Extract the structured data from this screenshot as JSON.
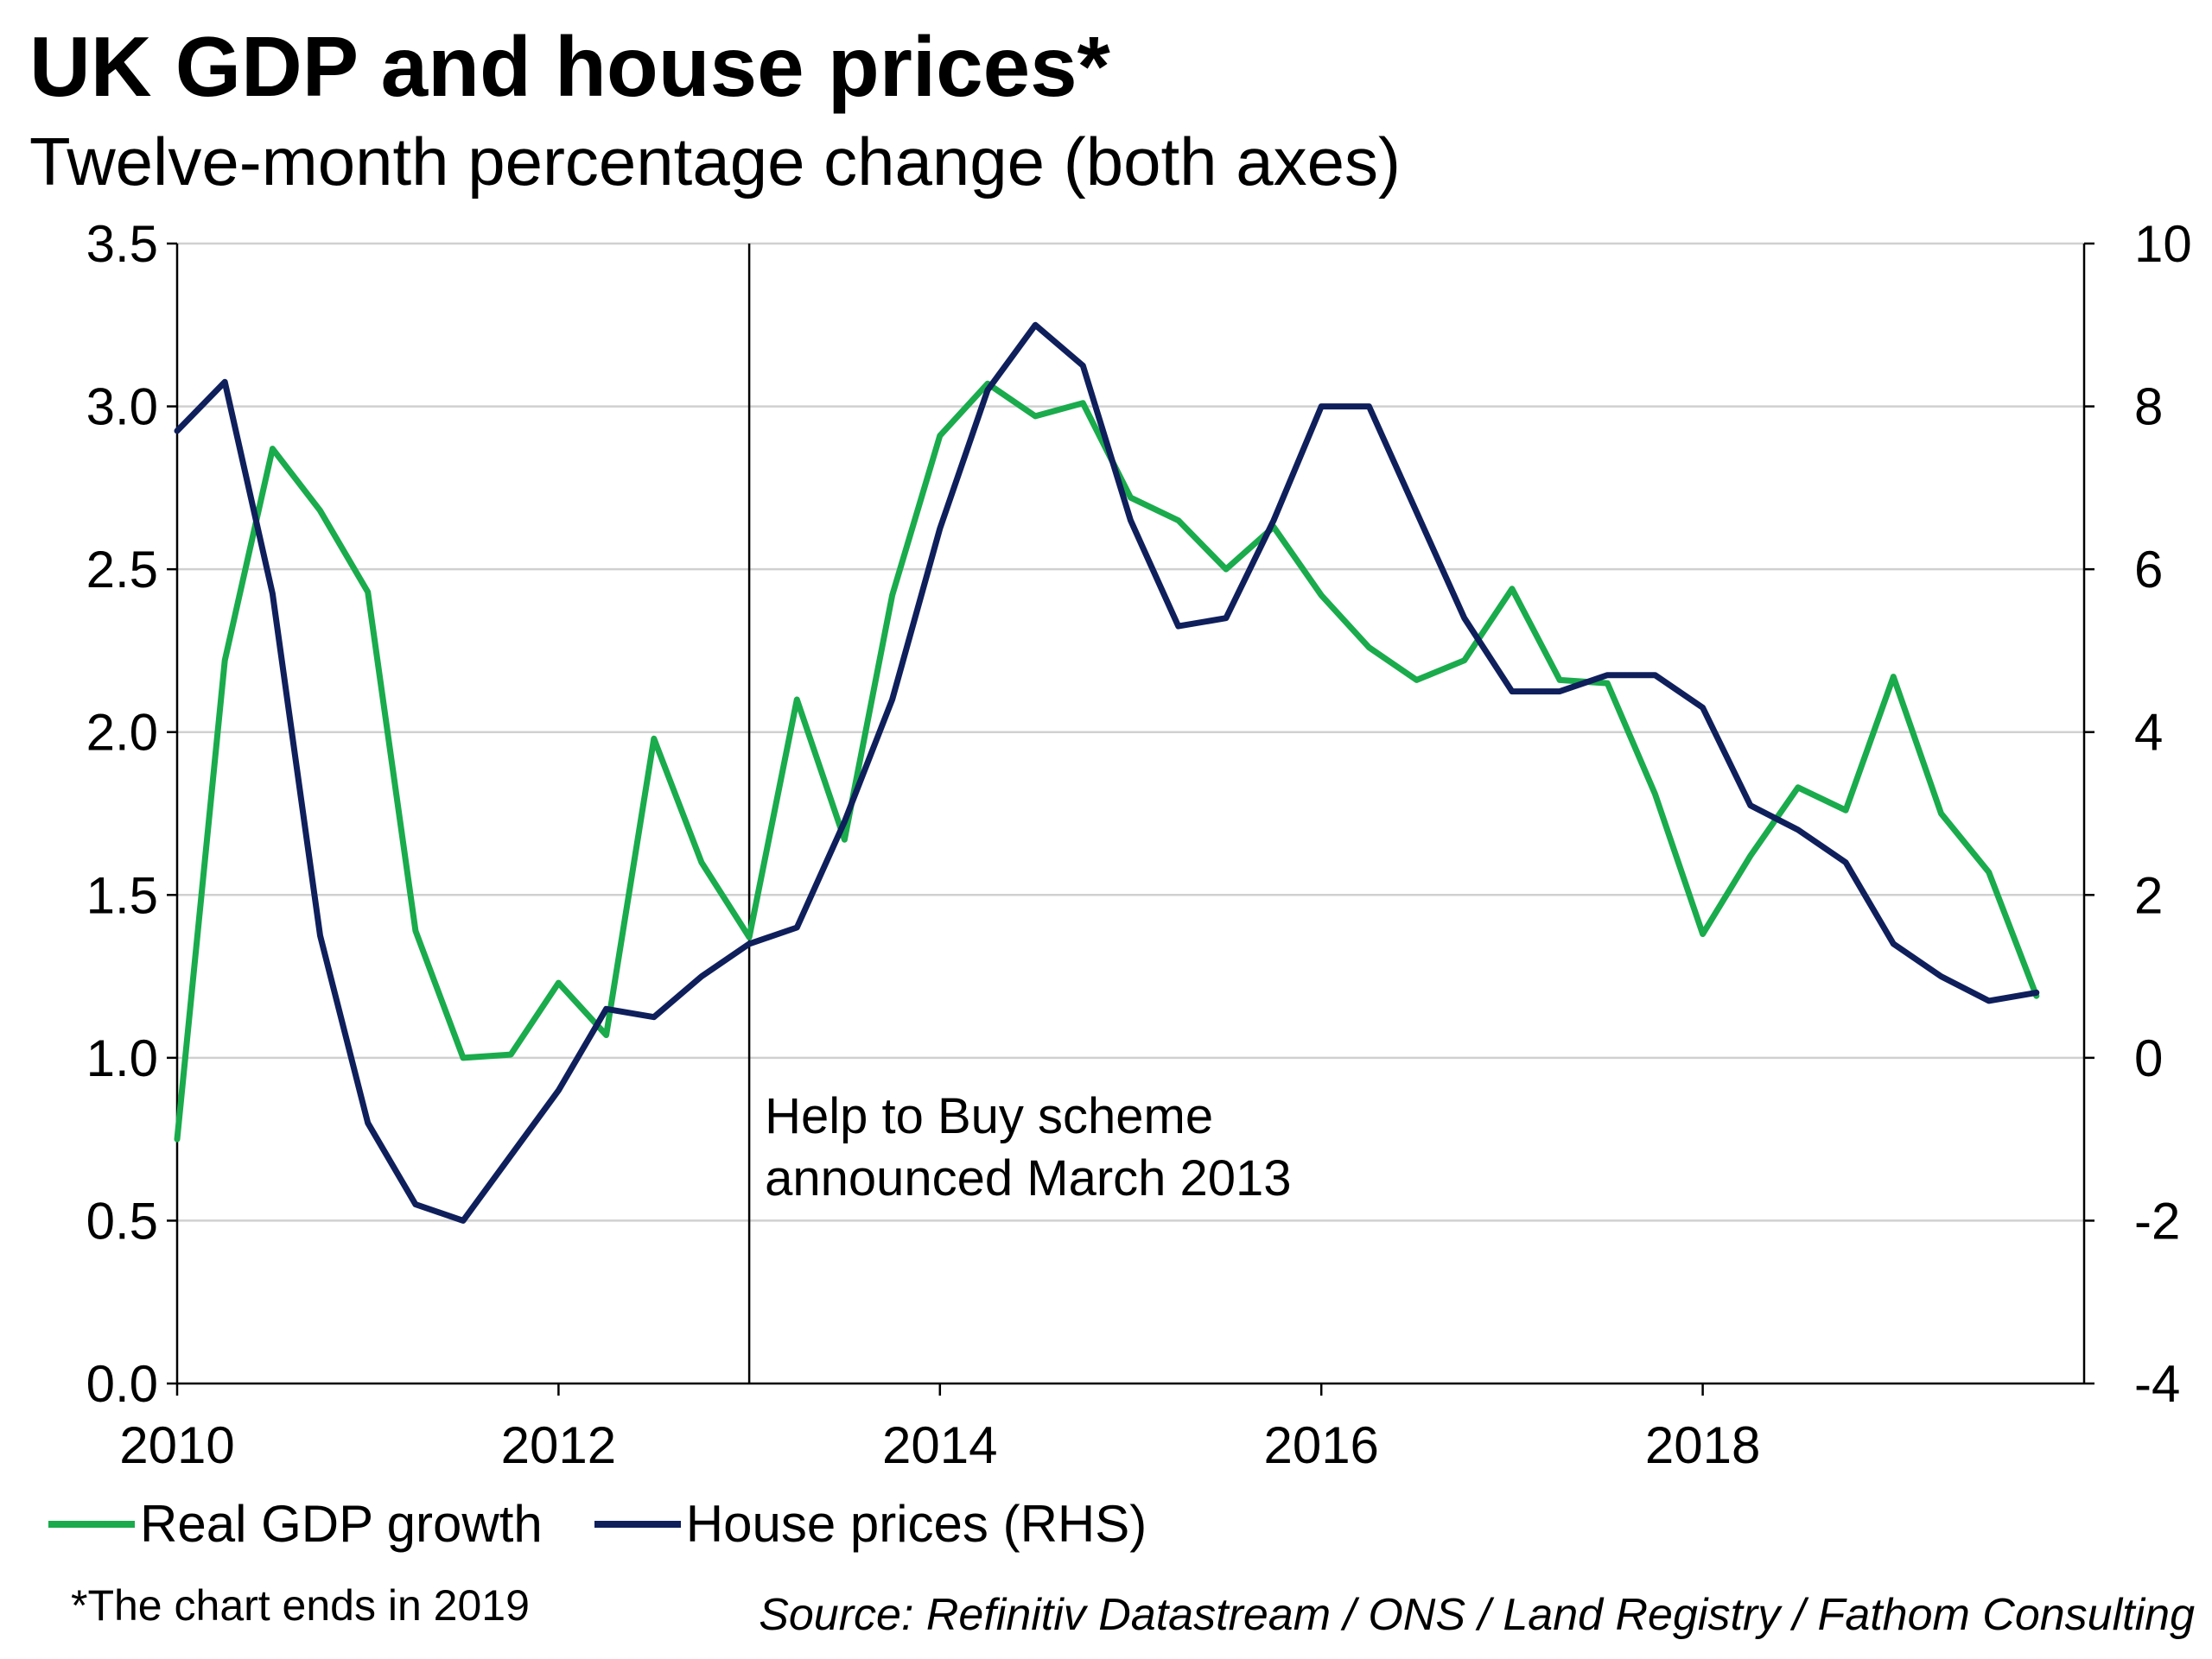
{
  "title": "UK GDP and house prices*",
  "subtitle": "Twelve-month percentage change (both axes)",
  "footnote": "*The chart ends in 2019",
  "source": "Source: Refinitiv Datastream / ONS / Land Registry /  Fathom Consulting",
  "colors": {
    "gdp": "#1aab4c",
    "house": "#0f1f5c",
    "grid": "#d0d0d0",
    "axis": "#000000"
  },
  "chart_data": {
    "type": "line",
    "x_axis": {
      "range": [
        2010,
        2020
      ],
      "ticks": [
        2010,
        2012,
        2014,
        2016,
        2018
      ],
      "tick_labels": [
        "2010",
        "2012",
        "2014",
        "2016",
        "2018"
      ]
    },
    "y_left": {
      "range": [
        0,
        3.5
      ],
      "ticks": [
        0,
        0.5,
        1,
        1.5,
        2,
        2.5,
        3,
        3.5
      ],
      "tick_labels": [
        "0.0",
        "0.5",
        "1.0",
        "1.5",
        "2.0",
        "2.5",
        "3.0",
        "3.5"
      ]
    },
    "y_right": {
      "range": [
        -4,
        10
      ],
      "ticks": [
        -4,
        -2,
        0,
        2,
        4,
        6,
        8,
        10
      ],
      "tick_labels": [
        "-4",
        "-2",
        "0",
        "2",
        "4",
        "6",
        "8",
        "10"
      ]
    },
    "grid": true,
    "legend_position": "bottom-left",
    "annotation": {
      "x": 2013.0,
      "lines": [
        "Help to Buy scheme",
        "announced March 2013"
      ]
    },
    "series": [
      {
        "name": "Real GDP growth",
        "axis": "left",
        "x": [
          2010.0,
          2010.25,
          2010.5,
          2010.75,
          2011.0,
          2011.25,
          2011.5,
          2011.75,
          2012.0,
          2012.25,
          2012.5,
          2012.75,
          2013.0,
          2013.25,
          2013.5,
          2013.75,
          2014.0,
          2014.25,
          2014.5,
          2014.75,
          2015.0,
          2015.25,
          2015.5,
          2015.75,
          2016.0,
          2016.25,
          2016.5,
          2016.75,
          2017.0,
          2017.25,
          2017.5,
          2017.75,
          2018.0,
          2018.25,
          2018.5,
          2018.75,
          2019.0,
          2019.25,
          2019.5,
          2019.75
        ],
        "y": [
          0.75,
          2.22,
          2.87,
          2.68,
          2.43,
          1.39,
          1.0,
          1.01,
          1.23,
          1.07,
          1.98,
          1.6,
          1.37,
          2.1,
          1.67,
          2.42,
          2.91,
          3.07,
          2.97,
          3.01,
          2.72,
          2.65,
          2.5,
          2.63,
          2.42,
          2.26,
          2.16,
          2.22,
          2.44,
          2.16,
          2.15,
          1.81,
          1.38,
          1.62,
          1.83,
          1.76,
          2.17,
          1.75,
          1.57,
          1.19
        ]
      },
      {
        "name": "House prices (RHS)",
        "axis": "right",
        "x": [
          2010.0,
          2010.25,
          2010.5,
          2010.75,
          2011.0,
          2011.25,
          2011.5,
          2011.75,
          2012.0,
          2012.25,
          2012.5,
          2012.75,
          2013.0,
          2013.25,
          2013.5,
          2013.75,
          2014.0,
          2014.25,
          2014.5,
          2014.75,
          2015.0,
          2015.25,
          2015.5,
          2015.75,
          2016.0,
          2016.25,
          2016.5,
          2016.75,
          2017.0,
          2017.25,
          2017.5,
          2017.75,
          2018.0,
          2018.25,
          2018.5,
          2018.75,
          2019.0,
          2019.25,
          2019.5,
          2019.75
        ],
        "y": [
          7.7,
          8.3,
          5.7,
          1.5,
          -0.8,
          -1.8,
          -2.0,
          -1.2,
          -0.4,
          0.6,
          0.5,
          1.0,
          1.4,
          1.6,
          2.9,
          4.4,
          6.5,
          8.2,
          9.0,
          8.5,
          6.6,
          5.3,
          5.4,
          6.6,
          8.0,
          8.0,
          6.7,
          5.4,
          4.5,
          4.5,
          4.7,
          4.7,
          4.3,
          3.1,
          2.8,
          2.4,
          1.4,
          1.0,
          0.7,
          0.8
        ]
      }
    ]
  }
}
